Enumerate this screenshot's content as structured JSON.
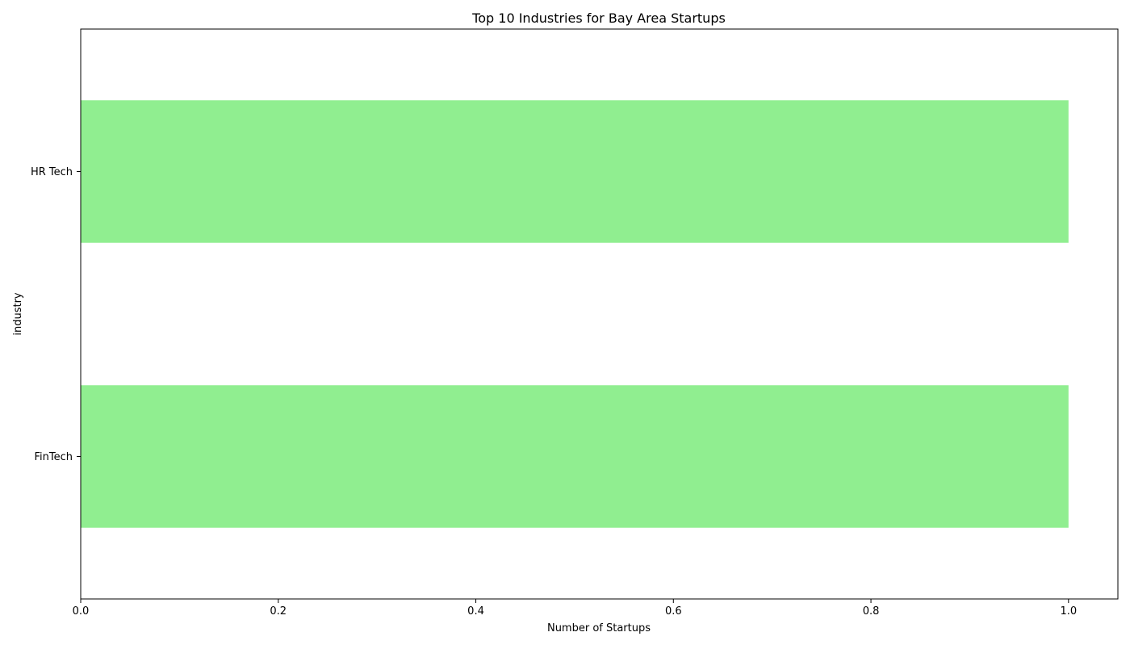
{
  "chart_data": {
    "type": "bar",
    "orientation": "horizontal",
    "title": "Top 10 Industries for Bay Area Startups",
    "xlabel": "Number of Startups",
    "ylabel": "industry",
    "categories": [
      "FinTech",
      "HR Tech"
    ],
    "values": [
      1,
      1
    ],
    "xlim": [
      0,
      1.05
    ],
    "xticks": [
      "0.0",
      "0.2",
      "0.4",
      "0.6",
      "0.8",
      "1.0"
    ],
    "grid": false,
    "legend": "none",
    "bar_color": "#90ee90"
  }
}
